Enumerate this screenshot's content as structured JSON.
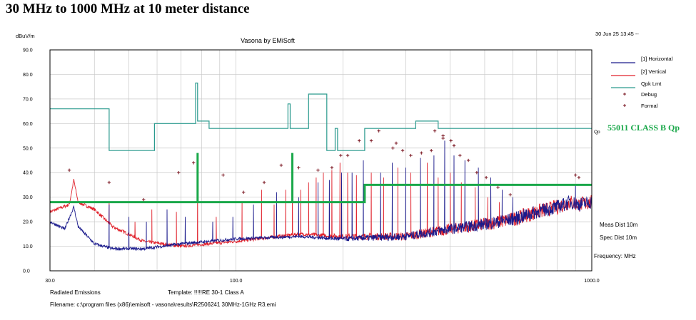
{
  "heading": "30 MHz to 1000 MHz at 10 meter distance",
  "chart_data": {
    "type": "line",
    "title": "Vasona by EMiSoft",
    "ylabel": "dBuV/m",
    "xlabel": "Frequency: MHz",
    "timestamp": "30 Jun 25 13:45 --",
    "x_scale": "log",
    "xlim": [
      30,
      1000
    ],
    "ylim": [
      0,
      90
    ],
    "y_ticks": [
      "0.0",
      "10.0",
      "20.0",
      "30.0",
      "40.0",
      "50.0",
      "60.0",
      "70.0",
      "80.0",
      "90.0"
    ],
    "x_ticks": [
      {
        "f": 30,
        "label": "30.0"
      },
      {
        "f": 100,
        "label": "100.0"
      },
      {
        "f": 1000,
        "label": "1000.0"
      }
    ],
    "colors": {
      "horizontal": "#1a1a8c",
      "vertical": "#e0202a",
      "qpk": "#2a9a8e",
      "debug": "#7a1520",
      "formal": "#7a1520",
      "class_b": "#1aa84a"
    },
    "legend": [
      {
        "label": "[1] Horizontal",
        "kind": "line",
        "color": "#1a1a8c"
      },
      {
        "label": "[2] Vertical",
        "kind": "line",
        "color": "#e0202a"
      },
      {
        "label": "Qpk Lmt",
        "kind": "line",
        "color": "#2a9a8e"
      },
      {
        "label": "Debug",
        "kind": "plus",
        "color": "#7a1520"
      },
      {
        "label": "Formal",
        "kind": "plus",
        "color": "#7a1520"
      }
    ],
    "qpk_label": "Qp",
    "qpk_limit": [
      [
        30,
        66
      ],
      [
        44,
        66
      ],
      [
        44,
        49
      ],
      [
        59,
        49
      ],
      [
        59,
        60
      ],
      [
        77,
        60
      ],
      [
        77,
        76.5
      ],
      [
        78,
        76.5
      ],
      [
        78,
        61
      ],
      [
        84,
        61
      ],
      [
        84,
        58
      ],
      [
        140,
        58
      ],
      [
        140,
        68
      ],
      [
        142,
        68
      ],
      [
        142,
        58
      ],
      [
        160,
        58
      ],
      [
        160,
        72
      ],
      [
        180,
        72
      ],
      [
        180,
        49
      ],
      [
        190,
        49
      ],
      [
        190,
        58
      ],
      [
        193,
        58
      ],
      [
        193,
        49
      ],
      [
        230,
        49
      ],
      [
        230,
        58
      ],
      [
        320,
        58
      ],
      [
        320,
        61
      ],
      [
        370,
        61
      ],
      [
        370,
        58
      ],
      [
        1000,
        58
      ]
    ],
    "class_b_limit": [
      [
        30,
        28
      ],
      [
        230,
        28
      ],
      [
        230,
        35
      ],
      [
        1000,
        35
      ]
    ],
    "class_b_limit_label": "55011 CLASS B  Qp",
    "class_b_spikes": [
      [
        78,
        28,
        48
      ],
      [
        144,
        28,
        48
      ]
    ],
    "horizontal_baseline": [
      [
        30,
        20
      ],
      [
        33,
        17
      ],
      [
        35,
        26
      ],
      [
        36,
        18
      ],
      [
        40,
        11
      ],
      [
        45,
        9
      ],
      [
        55,
        9
      ],
      [
        70,
        11
      ],
      [
        100,
        13
      ],
      [
        150,
        14
      ],
      [
        200,
        13
      ],
      [
        300,
        14
      ],
      [
        400,
        17
      ],
      [
        500,
        19
      ],
      [
        600,
        21
      ],
      [
        700,
        24
      ],
      [
        800,
        26
      ],
      [
        870,
        28
      ],
      [
        920,
        27
      ],
      [
        1000,
        28
      ]
    ],
    "vertical_baseline": [
      [
        30,
        24
      ],
      [
        34,
        27
      ],
      [
        35,
        37
      ],
      [
        36,
        28
      ],
      [
        40,
        25
      ],
      [
        45,
        18
      ],
      [
        55,
        12
      ],
      [
        70,
        10
      ],
      [
        100,
        12
      ],
      [
        150,
        15
      ],
      [
        200,
        14
      ],
      [
        300,
        14
      ],
      [
        400,
        17
      ],
      [
        500,
        19
      ],
      [
        600,
        21
      ],
      [
        700,
        24
      ],
      [
        800,
        26
      ],
      [
        870,
        28
      ],
      [
        920,
        27
      ],
      [
        1000,
        28
      ]
    ],
    "horizontal_peaks": [
      [
        44,
        27
      ],
      [
        50,
        22
      ],
      [
        56,
        20
      ],
      [
        64,
        25
      ],
      [
        72,
        22
      ],
      [
        86,
        20
      ],
      [
        98,
        22
      ],
      [
        112,
        27
      ],
      [
        130,
        32
      ],
      [
        150,
        30
      ],
      [
        170,
        36
      ],
      [
        183,
        37
      ],
      [
        198,
        40
      ],
      [
        212,
        40
      ],
      [
        228,
        45
      ],
      [
        255,
        40
      ],
      [
        275,
        44
      ],
      [
        300,
        42
      ],
      [
        330,
        46
      ],
      [
        360,
        47
      ],
      [
        386,
        53
      ],
      [
        410,
        47
      ],
      [
        440,
        45
      ],
      [
        480,
        42
      ],
      [
        520,
        38
      ],
      [
        560,
        33
      ],
      [
        600,
        30
      ],
      [
        900,
        35
      ]
    ],
    "vertical_peaks": [
      [
        44,
        28
      ],
      [
        52,
        20
      ],
      [
        58,
        25
      ],
      [
        68,
        24
      ],
      [
        78,
        35
      ],
      [
        88,
        22
      ],
      [
        104,
        28
      ],
      [
        118,
        33
      ],
      [
        128,
        27
      ],
      [
        138,
        33
      ],
      [
        144,
        35
      ],
      [
        152,
        33
      ],
      [
        160,
        36
      ],
      [
        168,
        38
      ],
      [
        176,
        40
      ],
      [
        186,
        41
      ],
      [
        196,
        44
      ],
      [
        206,
        40
      ],
      [
        218,
        39
      ],
      [
        240,
        40
      ],
      [
        260,
        38
      ],
      [
        285,
        42
      ],
      [
        310,
        40
      ],
      [
        345,
        44
      ],
      [
        370,
        38
      ],
      [
        400,
        40
      ],
      [
        430,
        36
      ],
      [
        470,
        34
      ],
      [
        510,
        30
      ],
      [
        550,
        28
      ]
    ],
    "debug_markers": [
      [
        34,
        41
      ],
      [
        44,
        36
      ],
      [
        55,
        29
      ],
      [
        69,
        40
      ],
      [
        76,
        44
      ],
      [
        92,
        39
      ],
      [
        105,
        32
      ],
      [
        120,
        36
      ],
      [
        134,
        43
      ],
      [
        150,
        42
      ],
      [
        170,
        41
      ],
      [
        186,
        42
      ],
      [
        197,
        47
      ],
      [
        206,
        47
      ],
      [
        222,
        53
      ],
      [
        240,
        53
      ],
      [
        252,
        57
      ],
      [
        276,
        50
      ],
      [
        294,
        49
      ],
      [
        310,
        47
      ],
      [
        332,
        48
      ],
      [
        354,
        49
      ],
      [
        382,
        55
      ],
      [
        402,
        53
      ],
      [
        426,
        47
      ],
      [
        450,
        45
      ],
      [
        475,
        40
      ],
      [
        505,
        38
      ],
      [
        545,
        34
      ],
      [
        590,
        31
      ],
      [
        900,
        39
      ],
      [
        920,
        38
      ]
    ],
    "formal_markers": [
      [
        282,
        52
      ],
      [
        362,
        57
      ],
      [
        382,
        54
      ],
      [
        410,
        51
      ]
    ]
  },
  "info": {
    "meas_dist": "Meas Dist 10m",
    "spec_dist": "Spec Dist 10m",
    "frequency": "Frequency: MHz",
    "radiated": "Radiated Emissions",
    "template": "Template: !!!!!RE 30-1 Class A",
    "filename": "Filename: c:\\program files (x86)\\emisoft - vasona\\results\\R2506241 30MHz-1GHz R3.emi"
  }
}
